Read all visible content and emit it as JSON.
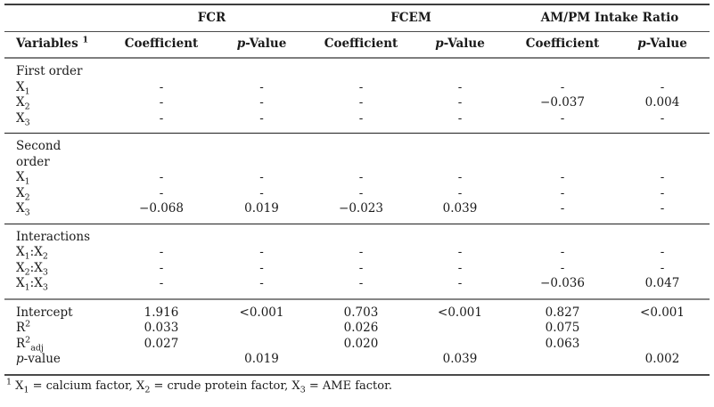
{
  "colors": {
    "background": "#ffffff",
    "text": "#1a1a1a",
    "rule_heavy": "#3d3d3d",
    "rule_medium": "#7e7e7e",
    "rule_light": "#1f1f1f"
  },
  "table": {
    "group_headers": [
      {
        "label": "FCR"
      },
      {
        "label": "FCEM"
      },
      {
        "label": "AM/PM Intake Ratio"
      }
    ],
    "column_headers": {
      "variables": [
        [
          "t",
          "Variables "
        ],
        [
          "sup",
          "1"
        ]
      ],
      "coefficient": "Coefficient",
      "p_value": [
        [
          "i",
          "p"
        ],
        [
          "t",
          "-Value"
        ]
      ]
    },
    "sections": [
      {
        "name": "first-order",
        "rows": [
          {
            "label": [
              [
                "t",
                "First order"
              ]
            ],
            "cells": [
              "",
              "",
              "",
              "",
              "",
              ""
            ]
          },
          {
            "label": [
              [
                "t",
                "X"
              ],
              [
                "sub",
                "1"
              ]
            ],
            "cells": [
              "-",
              "-",
              "-",
              "-",
              "-",
              "-"
            ]
          },
          {
            "label": [
              [
                "t",
                "X"
              ],
              [
                "sub",
                "2"
              ]
            ],
            "cells": [
              "-",
              "-",
              "-",
              "-",
              "−0.037",
              "0.004"
            ]
          },
          {
            "label": [
              [
                "t",
                "X"
              ],
              [
                "sub",
                "3"
              ]
            ],
            "cells": [
              "-",
              "-",
              "-",
              "-",
              "-",
              "-"
            ]
          }
        ]
      },
      {
        "name": "second-order",
        "rows": [
          {
            "label": [
              [
                "t",
                "Second"
              ],
              [
                "br",
                ""
              ],
              [
                "t",
                "order"
              ]
            ],
            "cells": [
              "",
              "",
              "",
              "",
              "",
              ""
            ]
          },
          {
            "label": [
              [
                "t",
                "X"
              ],
              [
                "sub",
                "1"
              ]
            ],
            "cells": [
              "-",
              "-",
              "-",
              "-",
              "-",
              "-"
            ]
          },
          {
            "label": [
              [
                "t",
                "X"
              ],
              [
                "sub",
                "2"
              ]
            ],
            "cells": [
              "-",
              "-",
              "-",
              "-",
              "-",
              "-"
            ]
          },
          {
            "label": [
              [
                "t",
                "X"
              ],
              [
                "sub",
                "3"
              ]
            ],
            "cells": [
              "−0.068",
              "0.019",
              "−0.023",
              "0.039",
              "-",
              "-"
            ]
          }
        ]
      },
      {
        "name": "interactions",
        "rows": [
          {
            "label": [
              [
                "t",
                "Interactions"
              ]
            ],
            "cells": [
              "",
              "",
              "",
              "",
              "",
              ""
            ]
          },
          {
            "label": [
              [
                "t",
                "X"
              ],
              [
                "sub",
                "1"
              ],
              [
                "t",
                ":X"
              ],
              [
                "sub",
                "2"
              ]
            ],
            "cells": [
              "-",
              "-",
              "-",
              "-",
              "-",
              "-"
            ]
          },
          {
            "label": [
              [
                "t",
                "X"
              ],
              [
                "sub",
                "2"
              ],
              [
                "t",
                ":X"
              ],
              [
                "sub",
                "3"
              ]
            ],
            "cells": [
              "-",
              "-",
              "-",
              "-",
              "-",
              "-"
            ]
          },
          {
            "label": [
              [
                "t",
                "X"
              ],
              [
                "sub",
                "1"
              ],
              [
                "t",
                ":X"
              ],
              [
                "sub",
                "3"
              ]
            ],
            "cells": [
              "-",
              "-",
              "-",
              "-",
              "−0.036",
              "0.047"
            ]
          }
        ]
      },
      {
        "name": "model-stats",
        "rows": [
          {
            "label": [
              [
                "t",
                "Intercept"
              ]
            ],
            "cells": [
              "1.916",
              "<0.001",
              "0.703",
              "<0.001",
              "0.827",
              "<0.001"
            ]
          },
          {
            "label": [
              [
                "t",
                "R"
              ],
              [
                "sup",
                "2"
              ]
            ],
            "cells": [
              "0.033",
              "",
              "0.026",
              "",
              "0.075",
              ""
            ]
          },
          {
            "label": [
              [
                "t",
                "R"
              ],
              [
                "sup",
                "2"
              ],
              [
                "sub",
                "adj"
              ]
            ],
            "cells": [
              "0.027",
              "",
              "0.020",
              "",
              "0.063",
              ""
            ]
          },
          {
            "label": [
              [
                "i",
                "p"
              ],
              [
                "t",
                "-value"
              ]
            ],
            "cells": [
              "",
              "0.019",
              "",
              "0.039",
              "",
              "0.002"
            ]
          }
        ]
      }
    ],
    "footnote": [
      [
        "sup",
        "1"
      ],
      [
        "t",
        " X"
      ],
      [
        "sub",
        "1"
      ],
      [
        "t",
        " = calcium factor, X"
      ],
      [
        "sub",
        "2"
      ],
      [
        "t",
        " = crude protein factor, X"
      ],
      [
        "sub",
        "3"
      ],
      [
        "t",
        " = AME factor."
      ]
    ]
  }
}
